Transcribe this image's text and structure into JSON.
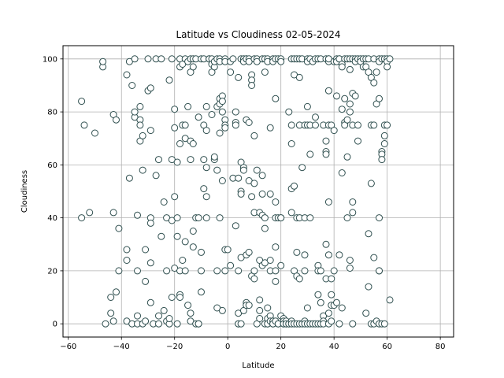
{
  "chart_data": {
    "type": "scatter",
    "title": "Latitude vs Cloudiness 02-05-2024",
    "xlabel": "Latitude",
    "ylabel": "Cloudiness",
    "xlim": [
      -62,
      85
    ],
    "ylim": [
      -5,
      105
    ],
    "xticks": [
      -60,
      -40,
      -20,
      0,
      20,
      40,
      60,
      80
    ],
    "yticks": [
      0,
      20,
      40,
      60,
      80,
      100
    ],
    "grid": true,
    "marker_edge_color": "#2f4f4f",
    "marker_face_color": "#ffffff",
    "points": [
      [
        -55,
        84
      ],
      [
        -54,
        75
      ],
      [
        -55,
        40
      ],
      [
        -52,
        42
      ],
      [
        -50,
        72
      ],
      [
        -47,
        97
      ],
      [
        -47,
        99
      ],
      [
        -46,
        0
      ],
      [
        -44,
        10
      ],
      [
        -44,
        4
      ],
      [
        -43,
        79
      ],
      [
        -43,
        42
      ],
      [
        -43,
        1
      ],
      [
        -42,
        77
      ],
      [
        -42,
        12
      ],
      [
        -41,
        20
      ],
      [
        -41,
        36
      ],
      [
        -38,
        1
      ],
      [
        -38,
        28
      ],
      [
        -38,
        24
      ],
      [
        -38,
        94
      ],
      [
        -37,
        55
      ],
      [
        -37,
        99
      ],
      [
        -36,
        90
      ],
      [
        -36,
        0
      ],
      [
        -35,
        100
      ],
      [
        -35,
        78
      ],
      [
        -35,
        80
      ],
      [
        -34,
        41
      ],
      [
        -34,
        3
      ],
      [
        -34,
        20
      ],
      [
        -34,
        0
      ],
      [
        -33,
        82
      ],
      [
        -33,
        77
      ],
      [
        -33,
        75
      ],
      [
        -33,
        69
      ],
      [
        -32,
        71
      ],
      [
        -32,
        58
      ],
      [
        -32,
        0
      ],
      [
        -31,
        28
      ],
      [
        -31,
        16
      ],
      [
        -31,
        1
      ],
      [
        -30,
        88
      ],
      [
        -30,
        100
      ],
      [
        -29,
        73
      ],
      [
        -29,
        89
      ],
      [
        -29,
        40
      ],
      [
        -29,
        38
      ],
      [
        -29,
        23
      ],
      [
        -29,
        8
      ],
      [
        -28,
        0
      ],
      [
        -27,
        100
      ],
      [
        -27,
        56
      ],
      [
        -26,
        62
      ],
      [
        -26,
        3
      ],
      [
        -26,
        0
      ],
      [
        -25,
        100
      ],
      [
        -25,
        33
      ],
      [
        -24,
        46
      ],
      [
        -24,
        5
      ],
      [
        -23,
        40
      ],
      [
        -23,
        20
      ],
      [
        -23,
        1
      ],
      [
        -22,
        0
      ],
      [
        -22,
        92
      ],
      [
        -22,
        2
      ],
      [
        -21,
        100
      ],
      [
        -21,
        62
      ],
      [
        -21,
        39
      ],
      [
        -21,
        10
      ],
      [
        -20,
        81
      ],
      [
        -20,
        74
      ],
      [
        -20,
        48
      ],
      [
        -20,
        21
      ],
      [
        -19,
        61
      ],
      [
        -19,
        40
      ],
      [
        -19,
        33
      ],
      [
        -19,
        0
      ],
      [
        -18,
        100
      ],
      [
        -18,
        97
      ],
      [
        -18,
        68
      ],
      [
        -18,
        20
      ],
      [
        -18,
        11
      ],
      [
        -18,
        10
      ],
      [
        -17,
        98
      ],
      [
        -17,
        75
      ],
      [
        -17,
        24
      ],
      [
        -16,
        100
      ],
      [
        -16,
        75
      ],
      [
        -16,
        70
      ],
      [
        -16,
        31
      ],
      [
        -16,
        20
      ],
      [
        -15,
        82
      ],
      [
        -15,
        99
      ],
      [
        -15,
        7
      ],
      [
        -14,
        100
      ],
      [
        -14,
        95
      ],
      [
        -14,
        62
      ],
      [
        -14,
        69
      ],
      [
        -14,
        4
      ],
      [
        -14,
        1
      ],
      [
        -13,
        100
      ],
      [
        -13,
        97
      ],
      [
        -13,
        68
      ],
      [
        -13,
        35
      ],
      [
        -13,
        29
      ],
      [
        -12,
        100
      ],
      [
        -12,
        40
      ],
      [
        -12,
        0
      ],
      [
        -11,
        78
      ],
      [
        -11,
        40
      ],
      [
        -11,
        0
      ],
      [
        -11,
        0
      ],
      [
        -10,
        100
      ],
      [
        -10,
        27
      ],
      [
        -10,
        12
      ],
      [
        -10,
        20
      ],
      [
        -9,
        100
      ],
      [
        -9,
        75
      ],
      [
        -9,
        62
      ],
      [
        -9,
        51
      ],
      [
        -8,
        82
      ],
      [
        -8,
        73
      ],
      [
        -8,
        48
      ],
      [
        -8,
        40
      ],
      [
        -8,
        59
      ],
      [
        -7,
        100
      ],
      [
        -7,
        100
      ],
      [
        -6,
        100
      ],
      [
        -6,
        79
      ],
      [
        -6,
        95
      ],
      [
        -6,
        98
      ],
      [
        -5,
        97
      ],
      [
        -5,
        62
      ],
      [
        -5,
        63
      ],
      [
        -5,
        99
      ],
      [
        -4,
        82
      ],
      [
        -4,
        58
      ],
      [
        -4,
        100
      ],
      [
        -4,
        20
      ],
      [
        -4,
        6
      ],
      [
        -3,
        100
      ],
      [
        -3,
        85
      ],
      [
        -3,
        83
      ],
      [
        -3,
        72
      ],
      [
        -3,
        40
      ],
      [
        -3,
        99
      ],
      [
        -2,
        86
      ],
      [
        -2,
        84
      ],
      [
        -2,
        80
      ],
      [
        -2,
        5
      ],
      [
        -2,
        54
      ],
      [
        -1,
        77
      ],
      [
        -1,
        75
      ],
      [
        -1,
        74
      ],
      [
        -1,
        100
      ],
      [
        -1,
        99
      ],
      [
        -1,
        28
      ],
      [
        -1,
        20
      ],
      [
        0,
        28
      ],
      [
        1,
        99
      ],
      [
        1,
        95
      ],
      [
        1,
        22
      ],
      [
        2,
        55
      ],
      [
        2,
        100
      ],
      [
        3,
        80
      ],
      [
        3,
        76
      ],
      [
        3,
        75
      ],
      [
        3,
        37
      ],
      [
        4,
        55
      ],
      [
        4,
        93
      ],
      [
        4,
        20
      ],
      [
        4,
        4
      ],
      [
        4,
        0
      ],
      [
        4,
        0
      ],
      [
        5,
        100
      ],
      [
        5,
        61
      ],
      [
        5,
        50
      ],
      [
        5,
        49
      ],
      [
        5,
        25
      ],
      [
        5,
        0
      ],
      [
        6,
        100
      ],
      [
        6,
        59
      ],
      [
        6,
        58
      ],
      [
        6,
        99
      ],
      [
        6,
        5
      ],
      [
        7,
        100
      ],
      [
        7,
        100
      ],
      [
        7,
        77
      ],
      [
        7,
        26
      ],
      [
        7,
        8
      ],
      [
        7,
        7
      ],
      [
        8,
        54
      ],
      [
        8,
        100
      ],
      [
        8,
        99
      ],
      [
        8,
        76
      ],
      [
        8,
        27
      ],
      [
        8,
        7
      ],
      [
        9,
        94
      ],
      [
        9,
        92
      ],
      [
        9,
        90
      ],
      [
        9,
        48
      ],
      [
        9,
        18
      ],
      [
        10,
        100
      ],
      [
        10,
        71
      ],
      [
        10,
        53
      ],
      [
        10,
        42
      ],
      [
        10,
        20
      ],
      [
        10,
        17
      ],
      [
        11,
        100
      ],
      [
        11,
        99
      ],
      [
        11,
        58
      ],
      [
        11,
        0
      ],
      [
        12,
        42
      ],
      [
        12,
        24
      ],
      [
        12,
        9
      ],
      [
        12,
        5
      ],
      [
        12,
        2
      ],
      [
        13,
        100
      ],
      [
        13,
        56
      ],
      [
        13,
        49
      ],
      [
        13,
        41
      ],
      [
        13,
        22
      ],
      [
        14,
        100
      ],
      [
        14,
        95
      ],
      [
        14,
        36
      ],
      [
        14,
        40
      ],
      [
        14,
        23
      ],
      [
        14,
        0
      ],
      [
        15,
        0
      ],
      [
        15,
        6
      ],
      [
        15,
        100
      ],
      [
        15,
        99
      ],
      [
        15,
        2
      ],
      [
        15,
        0
      ],
      [
        16,
        74
      ],
      [
        16,
        49
      ],
      [
        16,
        24
      ],
      [
        16,
        20
      ],
      [
        16,
        3
      ],
      [
        16,
        1
      ],
      [
        17,
        100
      ],
      [
        17,
        99
      ],
      [
        17,
        1
      ],
      [
        17,
        0
      ],
      [
        17,
        0
      ],
      [
        18,
        16
      ],
      [
        18,
        100
      ],
      [
        18,
        85
      ],
      [
        18,
        46
      ],
      [
        18,
        40
      ],
      [
        18,
        29
      ],
      [
        18,
        20
      ],
      [
        18,
        1
      ],
      [
        19,
        100
      ],
      [
        19,
        40
      ],
      [
        19,
        0
      ],
      [
        19,
        0
      ],
      [
        20,
        100
      ],
      [
        20,
        99
      ],
      [
        20,
        40
      ],
      [
        20,
        40
      ],
      [
        20,
        22
      ],
      [
        20,
        3
      ],
      [
        21,
        2
      ],
      [
        21,
        1
      ],
      [
        21,
        0
      ],
      [
        21,
        0
      ],
      [
        22,
        0
      ],
      [
        22,
        1
      ],
      [
        22,
        0
      ],
      [
        23,
        0
      ],
      [
        23,
        80
      ],
      [
        23,
        0
      ],
      [
        24,
        100
      ],
      [
        24,
        75
      ],
      [
        24,
        51
      ],
      [
        24,
        68
      ],
      [
        24,
        42
      ],
      [
        24,
        1
      ],
      [
        24,
        0
      ],
      [
        25,
        100
      ],
      [
        25,
        94
      ],
      [
        25,
        52
      ],
      [
        25,
        20
      ],
      [
        25,
        0
      ],
      [
        26,
        100
      ],
      [
        26,
        40
      ],
      [
        26,
        27
      ],
      [
        26,
        18
      ],
      [
        26,
        0
      ],
      [
        27,
        100
      ],
      [
        27,
        93
      ],
      [
        27,
        75
      ],
      [
        27,
        40
      ],
      [
        27,
        17
      ],
      [
        27,
        0
      ],
      [
        28,
        100
      ],
      [
        28,
        59
      ],
      [
        28,
        0
      ],
      [
        29,
        40
      ],
      [
        29,
        26
      ],
      [
        29,
        75
      ],
      [
        29,
        20
      ],
      [
        29,
        1
      ],
      [
        29,
        0
      ],
      [
        30,
        100
      ],
      [
        30,
        99
      ],
      [
        30,
        82
      ],
      [
        30,
        75
      ],
      [
        30,
        6
      ],
      [
        30,
        0
      ],
      [
        31,
        100
      ],
      [
        31,
        75
      ],
      [
        31,
        64
      ],
      [
        31,
        40
      ],
      [
        31,
        0
      ],
      [
        32,
        99
      ],
      [
        32,
        0
      ],
      [
        33,
        100
      ],
      [
        33,
        78
      ],
      [
        33,
        75
      ],
      [
        33,
        0
      ],
      [
        34,
        100
      ],
      [
        34,
        22
      ],
      [
        34,
        20
      ],
      [
        34,
        11
      ],
      [
        34,
        0
      ],
      [
        35,
        100
      ],
      [
        35,
        20
      ],
      [
        35,
        8
      ],
      [
        35,
        0
      ],
      [
        36,
        75
      ],
      [
        36,
        3
      ],
      [
        36,
        1
      ],
      [
        36,
        0
      ],
      [
        37,
        100
      ],
      [
        37,
        69
      ],
      [
        37,
        65
      ],
      [
        37,
        64
      ],
      [
        37,
        30
      ],
      [
        37,
        17
      ],
      [
        38,
        100
      ],
      [
        38,
        99
      ],
      [
        38,
        100
      ],
      [
        38,
        88
      ],
      [
        38,
        75
      ],
      [
        38,
        46
      ],
      [
        38,
        26
      ],
      [
        38,
        4
      ],
      [
        38,
        0
      ],
      [
        39,
        75
      ],
      [
        39,
        17
      ],
      [
        39,
        11
      ],
      [
        39,
        7
      ],
      [
        39,
        1
      ],
      [
        40,
        99
      ],
      [
        40,
        73
      ],
      [
        40,
        20
      ],
      [
        40,
        7
      ],
      [
        41,
        100
      ],
      [
        41,
        99
      ],
      [
        41,
        86
      ],
      [
        41,
        8
      ],
      [
        42,
        100
      ],
      [
        42,
        100
      ],
      [
        42,
        26
      ],
      [
        42,
        0
      ],
      [
        43,
        98
      ],
      [
        43,
        97
      ],
      [
        43,
        81
      ],
      [
        43,
        57
      ],
      [
        43,
        6
      ],
      [
        44,
        85
      ],
      [
        44,
        76
      ],
      [
        44,
        75
      ],
      [
        44,
        100
      ],
      [
        45,
        100
      ],
      [
        45,
        77
      ],
      [
        45,
        63
      ],
      [
        45,
        40
      ],
      [
        46,
        100
      ],
      [
        46,
        96
      ],
      [
        46,
        83
      ],
      [
        46,
        80
      ],
      [
        46,
        24
      ],
      [
        46,
        21
      ],
      [
        47,
        100
      ],
      [
        47,
        87
      ],
      [
        47,
        75
      ],
      [
        47,
        46
      ],
      [
        47,
        42
      ],
      [
        47,
        0
      ],
      [
        48,
        100
      ],
      [
        48,
        99
      ],
      [
        48,
        86
      ],
      [
        49,
        100
      ],
      [
        49,
        75
      ],
      [
        49,
        69
      ],
      [
        50,
        100
      ],
      [
        50,
        99
      ],
      [
        51,
        100
      ],
      [
        51,
        97
      ],
      [
        52,
        100
      ],
      [
        52,
        97
      ],
      [
        52,
        4
      ],
      [
        53,
        100
      ],
      [
        53,
        95
      ],
      [
        53,
        34
      ],
      [
        53,
        14
      ],
      [
        54,
        93
      ],
      [
        54,
        75
      ],
      [
        54,
        53
      ],
      [
        54,
        0
      ],
      [
        55,
        100
      ],
      [
        55,
        91
      ],
      [
        55,
        75
      ],
      [
        55,
        25
      ],
      [
        55,
        0
      ],
      [
        56,
        95
      ],
      [
        56,
        83
      ],
      [
        56,
        1
      ],
      [
        57,
        100
      ],
      [
        57,
        99
      ],
      [
        57,
        85
      ],
      [
        57,
        40
      ],
      [
        57,
        20
      ],
      [
        57,
        20
      ],
      [
        57,
        0
      ],
      [
        58,
        100
      ],
      [
        58,
        65
      ],
      [
        58,
        64
      ],
      [
        58,
        62
      ],
      [
        58,
        0
      ],
      [
        59,
        100
      ],
      [
        59,
        71
      ],
      [
        59,
        68
      ],
      [
        59,
        75
      ],
      [
        59,
        0
      ],
      [
        60,
        100
      ],
      [
        60,
        99
      ],
      [
        60,
        75
      ],
      [
        60,
        97
      ],
      [
        61,
        100
      ],
      [
        61,
        9
      ]
    ]
  }
}
